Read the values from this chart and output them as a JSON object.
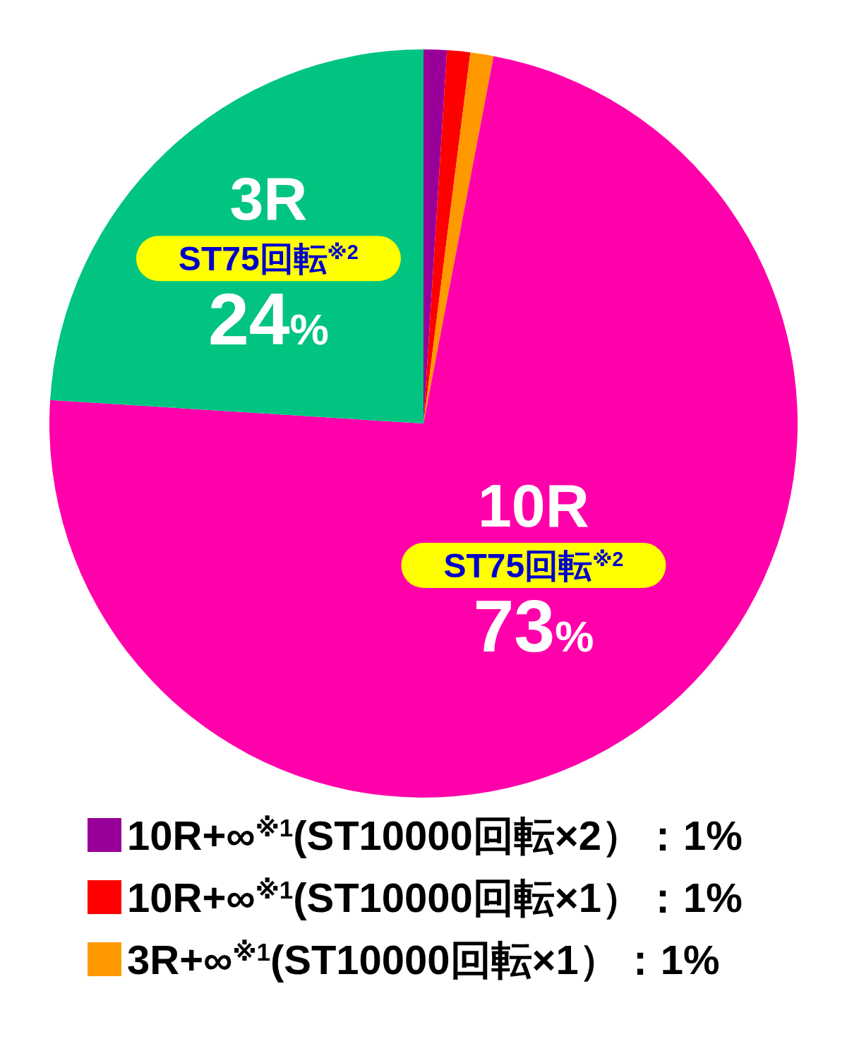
{
  "chart_data": {
    "type": "pie",
    "categories": [
      "10R+∞$^{※1}$(ST10000回転×2）",
      "10R+∞$^{※1}$(ST10000回転×1）",
      "3R+∞$^{※1}$(ST10000回転×1）",
      "10R\nST75回転$^{※2}$",
      "3R\nST75回転$^{※2}$"
    ],
    "values": [
      1,
      1,
      1,
      73,
      24
    ],
    "colors": [
      "#990099",
      "#ff0000",
      "#ff9900",
      "#ff00aa",
      "#00c480"
    ],
    "value_labels": [
      "：1%",
      "：1%",
      "：1%",
      "73%",
      "24%"
    ],
    "legend": "bottom"
  }
}
